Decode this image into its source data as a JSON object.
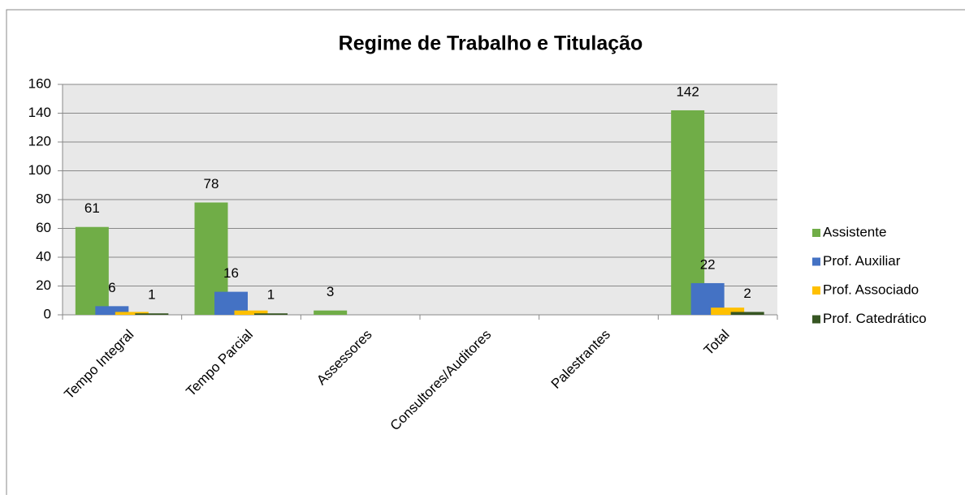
{
  "chart_data": {
    "type": "bar",
    "title": "Regime de Trabalho e Titulação",
    "categories": [
      "Tempo Integral",
      "Tempo Parcial",
      "Assessores",
      "Consultores/Auditores",
      "Palestrantes",
      "Total"
    ],
    "series": [
      {
        "name": "Assistente",
        "color": "#70ad47",
        "values": [
          61,
          78,
          3,
          0,
          0,
          142
        ],
        "value_labels": [
          "61",
          "78",
          "3",
          null,
          null,
          "142"
        ]
      },
      {
        "name": "Prof. Auxiliar",
        "color": "#4472c4",
        "values": [
          6,
          16,
          0,
          0,
          0,
          22
        ],
        "value_labels": [
          "6",
          "16",
          null,
          null,
          null,
          "22"
        ]
      },
      {
        "name": "Prof. Associado",
        "color": "#ffc000",
        "values": [
          2,
          3,
          0,
          0,
          0,
          5
        ],
        "value_labels": [
          null,
          null,
          null,
          null,
          null,
          null
        ]
      },
      {
        "name": "Prof. Catedrático",
        "color": "#375623",
        "values": [
          1,
          1,
          0,
          0,
          0,
          2
        ],
        "value_labels": [
          "1",
          "1",
          null,
          null,
          null,
          "2"
        ]
      }
    ],
    "ylim": [
      0,
      160
    ],
    "yticks": [
      0,
      20,
      40,
      60,
      80,
      100,
      120,
      140,
      160
    ],
    "grid": true,
    "legend": "right"
  }
}
